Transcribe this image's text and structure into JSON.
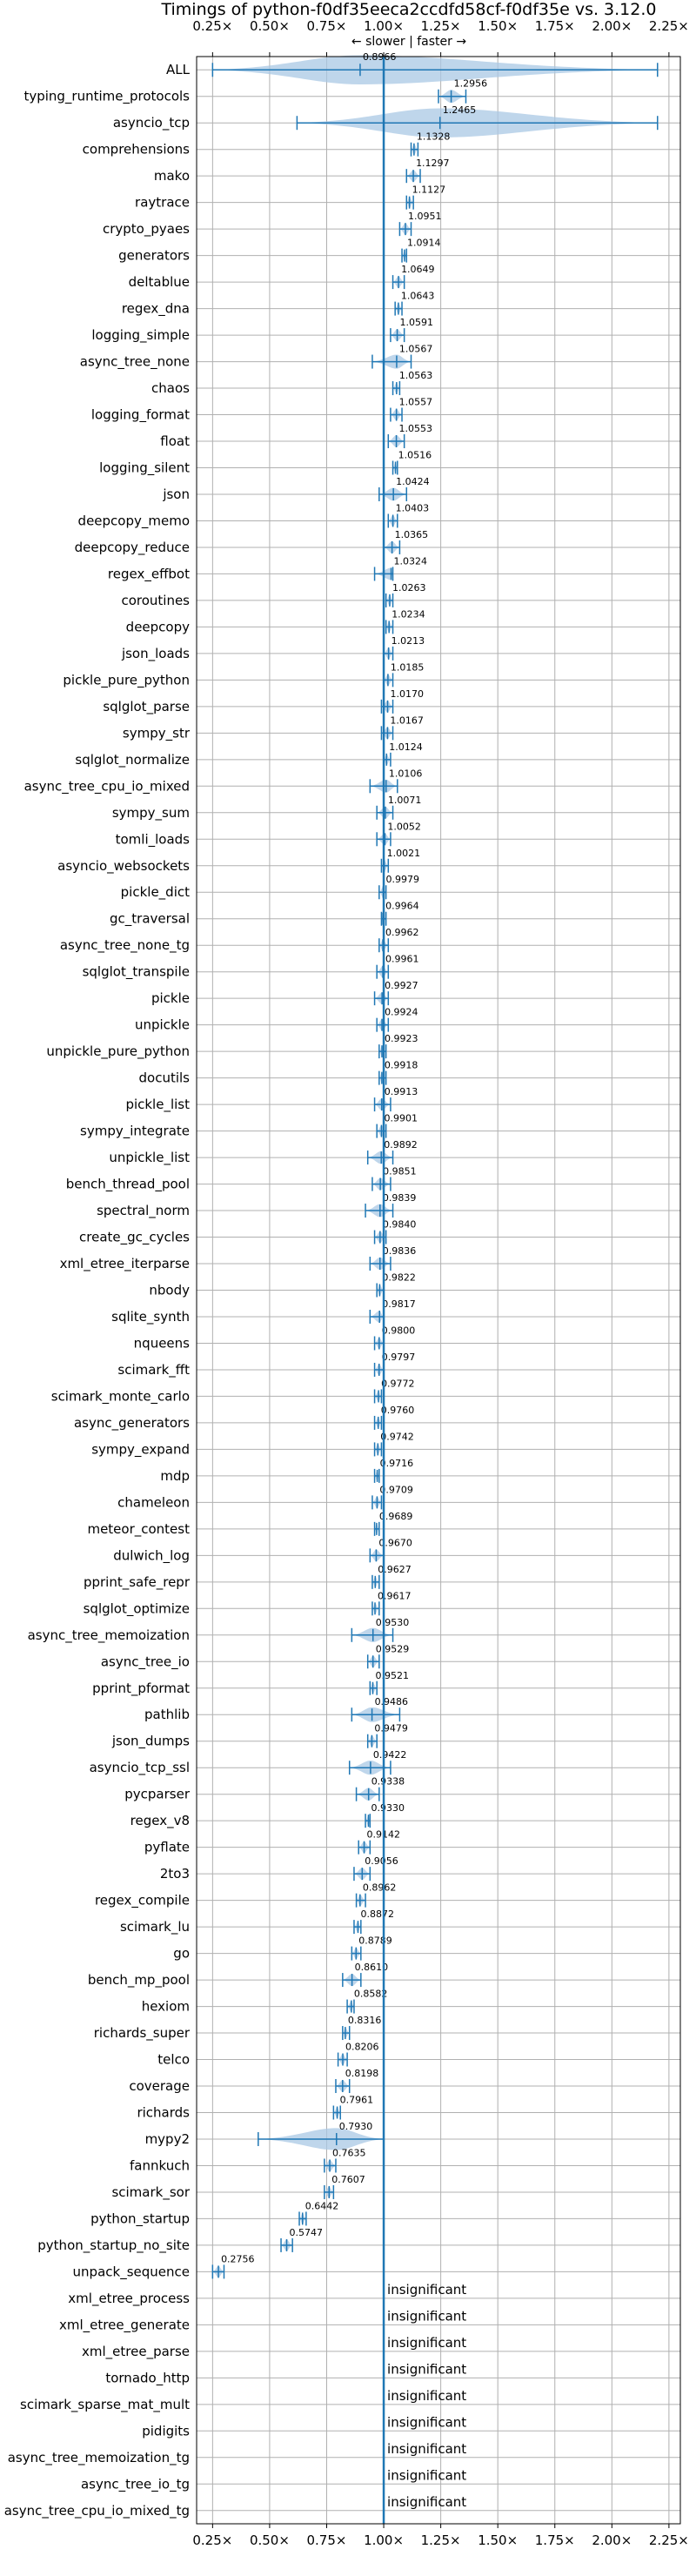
{
  "chart_data": {
    "type": "violin",
    "title": "Timings of python-f0df35eeca2ccdfd58cf-f0df35e vs. 3.12.0",
    "direction_label": "← slower | faster →",
    "xlim": [
      0.18,
      2.3
    ],
    "ticks": [
      0.25,
      0.5,
      0.75,
      1.0,
      1.25,
      1.5,
      1.75,
      2.0,
      2.25
    ],
    "tick_labels": [
      "0.25×",
      "0.50×",
      "0.75×",
      "1.00×",
      "1.25×",
      "1.50×",
      "1.75×",
      "2.00×",
      "2.25×"
    ],
    "colors": {
      "violin": "#a9c8e4",
      "body": "#1f77b4",
      "median": "#d62728",
      "baseline": "#1f77b4",
      "grid": "#b0b0b0"
    },
    "insignificant_label": "insignificant",
    "benchmarks": [
      {
        "name": "ALL",
        "value": 0.8966,
        "label": "0.8966",
        "min": 0.25,
        "max": 2.2
      },
      {
        "name": "typing_runtime_protocols",
        "value": 1.2956,
        "label": "1.2956",
        "min": 1.24,
        "max": 1.36
      },
      {
        "name": "asyncio_tcp",
        "value": 1.2465,
        "label": "1.2465",
        "min": 0.62,
        "max": 2.2
      },
      {
        "name": "comprehensions",
        "value": 1.1328,
        "label": "1.1328",
        "min": 1.12,
        "max": 1.15
      },
      {
        "name": "mako",
        "value": 1.1297,
        "label": "1.1297",
        "min": 1.1,
        "max": 1.16
      },
      {
        "name": "raytrace",
        "value": 1.1127,
        "label": "1.1127",
        "min": 1.1,
        "max": 1.13
      },
      {
        "name": "crypto_pyaes",
        "value": 1.0951,
        "label": "1.0951",
        "min": 1.07,
        "max": 1.12
      },
      {
        "name": "generators",
        "value": 1.0914,
        "label": "1.0914",
        "min": 1.08,
        "max": 1.1
      },
      {
        "name": "deltablue",
        "value": 1.0649,
        "label": "1.0649",
        "min": 1.04,
        "max": 1.09
      },
      {
        "name": "regex_dna",
        "value": 1.0643,
        "label": "1.0643",
        "min": 1.05,
        "max": 1.08
      },
      {
        "name": "logging_simple",
        "value": 1.0591,
        "label": "1.0591",
        "min": 1.03,
        "max": 1.09
      },
      {
        "name": "async_tree_none",
        "value": 1.0567,
        "label": "1.0567",
        "min": 0.95,
        "max": 1.12
      },
      {
        "name": "chaos",
        "value": 1.0563,
        "label": "1.0563",
        "min": 1.04,
        "max": 1.07
      },
      {
        "name": "logging_format",
        "value": 1.0557,
        "label": "1.0557",
        "min": 1.03,
        "max": 1.08
      },
      {
        "name": "float",
        "value": 1.0553,
        "label": "1.0553",
        "min": 1.02,
        "max": 1.09
      },
      {
        "name": "logging_silent",
        "value": 1.0516,
        "label": "1.0516",
        "min": 1.04,
        "max": 1.06
      },
      {
        "name": "json",
        "value": 1.0424,
        "label": "1.0424",
        "min": 0.98,
        "max": 1.1
      },
      {
        "name": "deepcopy_memo",
        "value": 1.0403,
        "label": "1.0403",
        "min": 1.02,
        "max": 1.06
      },
      {
        "name": "deepcopy_reduce",
        "value": 1.0365,
        "label": "1.0365",
        "min": 1.0,
        "max": 1.07
      },
      {
        "name": "regex_effbot",
        "value": 1.0324,
        "label": "1.0324",
        "min": 0.96,
        "max": 1.04
      },
      {
        "name": "coroutines",
        "value": 1.0263,
        "label": "1.0263",
        "min": 1.01,
        "max": 1.04
      },
      {
        "name": "deepcopy",
        "value": 1.0234,
        "label": "1.0234",
        "min": 1.01,
        "max": 1.04
      },
      {
        "name": "json_loads",
        "value": 1.0213,
        "label": "1.0213",
        "min": 1.0,
        "max": 1.04
      },
      {
        "name": "pickle_pure_python",
        "value": 1.0185,
        "label": "1.0185",
        "min": 1.0,
        "max": 1.04
      },
      {
        "name": "sqlglot_parse",
        "value": 1.017,
        "label": "1.0170",
        "min": 0.99,
        "max": 1.04
      },
      {
        "name": "sympy_str",
        "value": 1.0167,
        "label": "1.0167",
        "min": 0.99,
        "max": 1.04
      },
      {
        "name": "sqlglot_normalize",
        "value": 1.0124,
        "label": "1.0124",
        "min": 1.0,
        "max": 1.03
      },
      {
        "name": "async_tree_cpu_io_mixed",
        "value": 1.0106,
        "label": "1.0106",
        "min": 0.94,
        "max": 1.06
      },
      {
        "name": "sympy_sum",
        "value": 1.0071,
        "label": "1.0071",
        "min": 0.97,
        "max": 1.04
      },
      {
        "name": "tomli_loads",
        "value": 1.0052,
        "label": "1.0052",
        "min": 0.97,
        "max": 1.03
      },
      {
        "name": "asyncio_websockets",
        "value": 1.0021,
        "label": "1.0021",
        "min": 0.99,
        "max": 1.02
      },
      {
        "name": "pickle_dict",
        "value": 0.9979,
        "label": "0.9979",
        "min": 0.98,
        "max": 1.01
      },
      {
        "name": "gc_traversal",
        "value": 0.9964,
        "label": "0.9964",
        "min": 0.99,
        "max": 1.01
      },
      {
        "name": "async_tree_none_tg",
        "value": 0.9962,
        "label": "0.9962",
        "min": 0.98,
        "max": 1.02
      },
      {
        "name": "sqlglot_transpile",
        "value": 0.9961,
        "label": "0.9961",
        "min": 0.97,
        "max": 1.02
      },
      {
        "name": "pickle",
        "value": 0.9927,
        "label": "0.9927",
        "min": 0.96,
        "max": 1.02
      },
      {
        "name": "unpickle",
        "value": 0.9924,
        "label": "0.9924",
        "min": 0.97,
        "max": 1.02
      },
      {
        "name": "unpickle_pure_python",
        "value": 0.9923,
        "label": "0.9923",
        "min": 0.98,
        "max": 1.01
      },
      {
        "name": "docutils",
        "value": 0.9918,
        "label": "0.9918",
        "min": 0.98,
        "max": 1.01
      },
      {
        "name": "pickle_list",
        "value": 0.9913,
        "label": "0.9913",
        "min": 0.96,
        "max": 1.03
      },
      {
        "name": "sympy_integrate",
        "value": 0.9901,
        "label": "0.9901",
        "min": 0.97,
        "max": 1.01
      },
      {
        "name": "unpickle_list",
        "value": 0.9892,
        "label": "0.9892",
        "min": 0.93,
        "max": 1.04
      },
      {
        "name": "bench_thread_pool",
        "value": 0.9851,
        "label": "0.9851",
        "min": 0.95,
        "max": 1.03
      },
      {
        "name": "spectral_norm",
        "value": 0.9839,
        "label": "0.9839",
        "min": 0.92,
        "max": 1.04
      },
      {
        "name": "create_gc_cycles",
        "value": 0.984,
        "label": "0.9840",
        "min": 0.96,
        "max": 1.01
      },
      {
        "name": "xml_etree_iterparse",
        "value": 0.9836,
        "label": "0.9836",
        "min": 0.94,
        "max": 1.03
      },
      {
        "name": "nbody",
        "value": 0.9822,
        "label": "0.9822",
        "min": 0.97,
        "max": 1.0
      },
      {
        "name": "sqlite_synth",
        "value": 0.9817,
        "label": "0.9817",
        "min": 0.94,
        "max": 1.0
      },
      {
        "name": "nqueens",
        "value": 0.98,
        "label": "0.9800",
        "min": 0.96,
        "max": 1.0
      },
      {
        "name": "scimark_fft",
        "value": 0.9797,
        "label": "0.9797",
        "min": 0.96,
        "max": 1.0
      },
      {
        "name": "scimark_monte_carlo",
        "value": 0.9772,
        "label": "0.9772",
        "min": 0.96,
        "max": 0.99
      },
      {
        "name": "async_generators",
        "value": 0.976,
        "label": "0.9760",
        "min": 0.96,
        "max": 0.99
      },
      {
        "name": "sympy_expand",
        "value": 0.9742,
        "label": "0.9742",
        "min": 0.96,
        "max": 0.99
      },
      {
        "name": "mdp",
        "value": 0.9716,
        "label": "0.9716",
        "min": 0.96,
        "max": 0.98
      },
      {
        "name": "chameleon",
        "value": 0.9709,
        "label": "0.9709",
        "min": 0.95,
        "max": 0.99
      },
      {
        "name": "meteor_contest",
        "value": 0.9689,
        "label": "0.9689",
        "min": 0.96,
        "max": 0.98
      },
      {
        "name": "dulwich_log",
        "value": 0.967,
        "label": "0.9670",
        "min": 0.94,
        "max": 1.0
      },
      {
        "name": "pprint_safe_repr",
        "value": 0.9627,
        "label": "0.9627",
        "min": 0.95,
        "max": 0.98
      },
      {
        "name": "sqlglot_optimize",
        "value": 0.9617,
        "label": "0.9617",
        "min": 0.95,
        "max": 0.98
      },
      {
        "name": "async_tree_memoization",
        "value": 0.953,
        "label": "0.9530",
        "min": 0.86,
        "max": 1.04
      },
      {
        "name": "async_tree_io",
        "value": 0.9529,
        "label": "0.9529",
        "min": 0.93,
        "max": 0.98
      },
      {
        "name": "pprint_pformat",
        "value": 0.9521,
        "label": "0.9521",
        "min": 0.94,
        "max": 0.97
      },
      {
        "name": "pathlib",
        "value": 0.9486,
        "label": "0.9486",
        "min": 0.86,
        "max": 1.07
      },
      {
        "name": "json_dumps",
        "value": 0.9479,
        "label": "0.9479",
        "min": 0.93,
        "max": 0.97
      },
      {
        "name": "asyncio_tcp_ssl",
        "value": 0.9422,
        "label": "0.9422",
        "min": 0.85,
        "max": 1.03
      },
      {
        "name": "pycparser",
        "value": 0.9338,
        "label": "0.9338",
        "min": 0.88,
        "max": 0.98
      },
      {
        "name": "regex_v8",
        "value": 0.933,
        "label": "0.9330",
        "min": 0.92,
        "max": 0.94
      },
      {
        "name": "pyflate",
        "value": 0.9142,
        "label": "0.9142",
        "min": 0.89,
        "max": 0.94
      },
      {
        "name": "2to3",
        "value": 0.9056,
        "label": "0.9056",
        "min": 0.87,
        "max": 0.94
      },
      {
        "name": "regex_compile",
        "value": 0.8962,
        "label": "0.8962",
        "min": 0.88,
        "max": 0.92
      },
      {
        "name": "scimark_lu",
        "value": 0.8872,
        "label": "0.8872",
        "min": 0.87,
        "max": 0.9
      },
      {
        "name": "go",
        "value": 0.8789,
        "label": "0.8789",
        "min": 0.86,
        "max": 0.9
      },
      {
        "name": "bench_mp_pool",
        "value": 0.861,
        "label": "0.8610",
        "min": 0.82,
        "max": 0.9
      },
      {
        "name": "hexiom",
        "value": 0.8582,
        "label": "0.8582",
        "min": 0.84,
        "max": 0.87
      },
      {
        "name": "richards_super",
        "value": 0.8316,
        "label": "0.8316",
        "min": 0.82,
        "max": 0.85
      },
      {
        "name": "telco",
        "value": 0.8206,
        "label": "0.8206",
        "min": 0.8,
        "max": 0.84
      },
      {
        "name": "coverage",
        "value": 0.8198,
        "label": "0.8198",
        "min": 0.79,
        "max": 0.85
      },
      {
        "name": "richards",
        "value": 0.7961,
        "label": "0.7961",
        "min": 0.78,
        "max": 0.81
      },
      {
        "name": "mypy2",
        "value": 0.793,
        "label": "0.7930",
        "min": 0.45,
        "max": 1.0
      },
      {
        "name": "fannkuch",
        "value": 0.7635,
        "label": "0.7635",
        "min": 0.74,
        "max": 0.79
      },
      {
        "name": "scimark_sor",
        "value": 0.7607,
        "label": "0.7607",
        "min": 0.74,
        "max": 0.78
      },
      {
        "name": "python_startup",
        "value": 0.6442,
        "label": "0.6442",
        "min": 0.63,
        "max": 0.66
      },
      {
        "name": "python_startup_no_site",
        "value": 0.5747,
        "label": "0.5747",
        "min": 0.55,
        "max": 0.6
      },
      {
        "name": "unpack_sequence",
        "value": 0.2756,
        "label": "0.2756",
        "min": 0.25,
        "max": 0.3
      },
      {
        "name": "xml_etree_process",
        "value": null,
        "label": "insignificant"
      },
      {
        "name": "xml_etree_generate",
        "value": null,
        "label": "insignificant"
      },
      {
        "name": "xml_etree_parse",
        "value": null,
        "label": "insignificant"
      },
      {
        "name": "tornado_http",
        "value": null,
        "label": "insignificant"
      },
      {
        "name": "scimark_sparse_mat_mult",
        "value": null,
        "label": "insignificant"
      },
      {
        "name": "pidigits",
        "value": null,
        "label": "insignificant"
      },
      {
        "name": "async_tree_memoization_tg",
        "value": null,
        "label": "insignificant"
      },
      {
        "name": "async_tree_io_tg",
        "value": null,
        "label": "insignificant"
      },
      {
        "name": "async_tree_cpu_io_mixed_tg",
        "value": null,
        "label": "insignificant"
      }
    ]
  }
}
